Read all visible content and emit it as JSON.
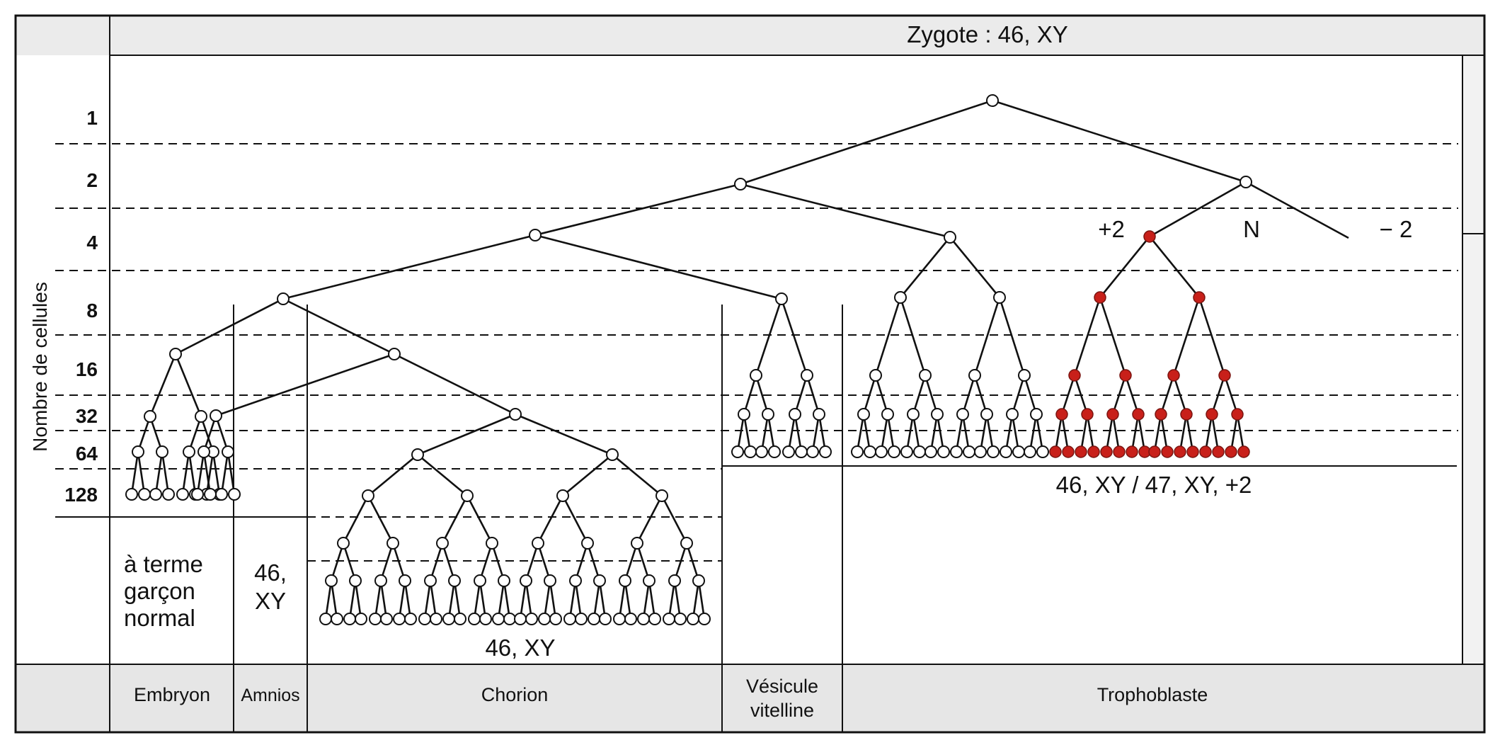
{
  "header": {
    "title": "Zygote : 46, XY"
  },
  "axis": {
    "label": "Nombre de cellules",
    "rows": [
      "1",
      "2",
      "4",
      "8",
      "16",
      "32",
      "64",
      "128"
    ]
  },
  "branch_labels": {
    "trisomy": "+2",
    "normal": "N",
    "monosomy": "− 2"
  },
  "results": {
    "embryon": [
      "à terme",
      "garçon",
      "normal"
    ],
    "amnios": [
      "46,",
      "XY"
    ],
    "chorion": "46, XY",
    "trophoblaste": "46, XY / 47, XY, +2"
  },
  "footer": {
    "columns": [
      "Embryon",
      "Amnios",
      "Chorion",
      "Vésicule vitelline",
      "Trophoblaste"
    ],
    "vesicule_lines": [
      "Vésicule",
      "vitelline"
    ]
  },
  "colors": {
    "normal_cell": "#ffffff",
    "trisomic_cell": "#c8201a",
    "header_band": "#ebebeb",
    "footer_band": "#e6e6e6"
  }
}
